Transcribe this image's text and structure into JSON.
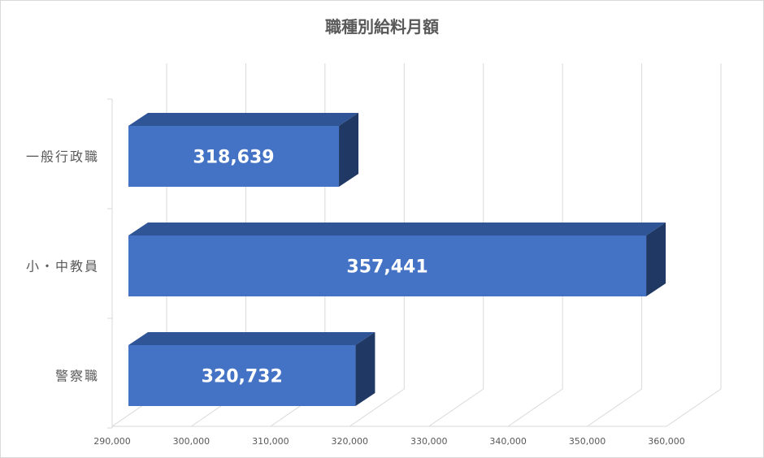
{
  "chart_data": {
    "type": "bar",
    "orientation": "horizontal",
    "style": "3d",
    "title": "職種別給料月額",
    "categories": [
      "一般行政職",
      "小・中教員",
      "警察職"
    ],
    "values": [
      318639,
      357441,
      320732
    ],
    "value_labels": [
      "318,639",
      "357,441",
      "320,732"
    ],
    "xlim": [
      290000,
      360000
    ],
    "x_ticks": [
      290000,
      300000,
      310000,
      320000,
      330000,
      340000,
      350000,
      360000
    ],
    "x_tick_labels": [
      "290,000",
      "300,000",
      "310,000",
      "320,000",
      "330,000",
      "340,000",
      "350,000",
      "360,000"
    ],
    "grid": true,
    "legend": "none",
    "colors": {
      "bar_front": "#4472c4",
      "bar_top": "#2f5597",
      "bar_side": "#203864",
      "label": "#ffffff",
      "grid": "#d9d9d9",
      "title": "#595959",
      "axis_text": "#595959"
    }
  }
}
